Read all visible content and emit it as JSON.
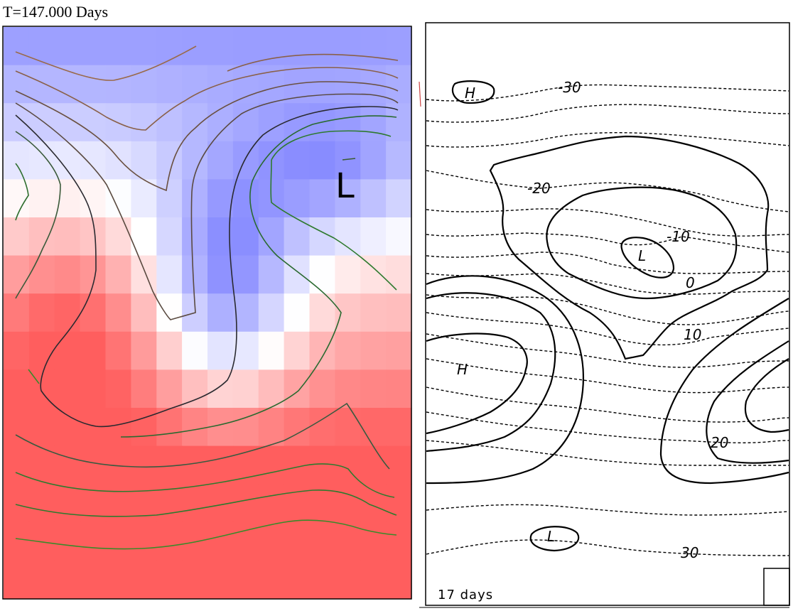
{
  "left": {
    "title": "T=147.000 Days",
    "low_label": "L",
    "colors": {
      "cold": "#7a7eff",
      "neutral": "#ffffff",
      "warm": "#ff5050"
    }
  },
  "right": {
    "duration_label": "17 days",
    "pressure_labels": [
      "H",
      "L",
      "H",
      "L"
    ],
    "contour_labels": [
      "-30",
      "-20",
      "-10",
      "0",
      "10",
      "20",
      "30"
    ]
  }
}
